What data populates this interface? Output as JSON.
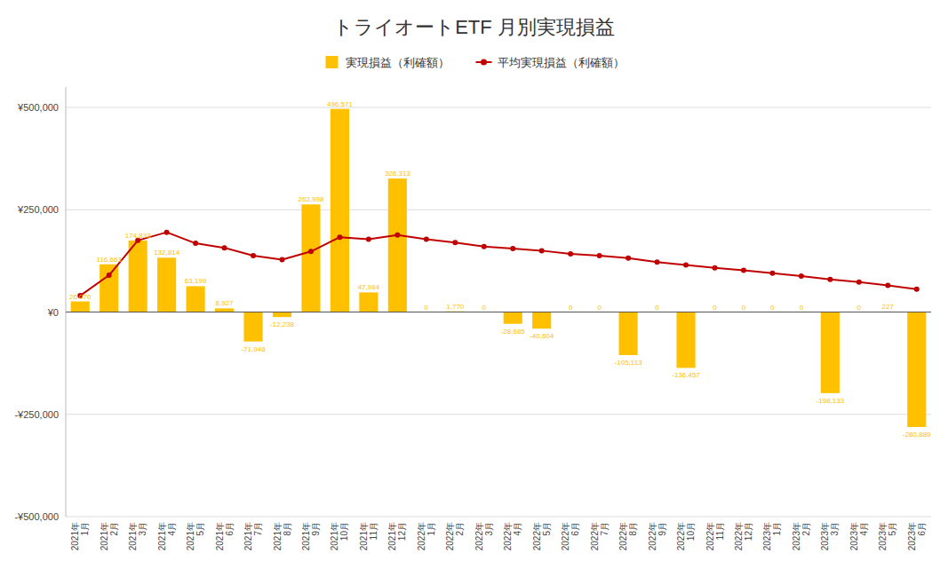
{
  "chart_data": {
    "type": "bar",
    "title": "トライオートETF 月別実現損益",
    "categories": [
      "2021年\n1月",
      "2021年\n2月",
      "2021年\n3月",
      "2021年\n4月",
      "2021年\n5月",
      "2021年\n6月",
      "2021年\n7月",
      "2021年\n8月",
      "2021年\n9月",
      "2021年\n10月",
      "2021年\n11月",
      "2021年\n12月",
      "2022年\n1月",
      "2022年\n2月",
      "2022年\n3月",
      "2022年\n4月",
      "2022年\n5月",
      "2022年\n6月",
      "2022年\n7月",
      "2022年\n8月",
      "2022年\n9月",
      "2022年\n10月",
      "2022年\n11月",
      "2022年\n12月",
      "2023年\n1月",
      "2023年\n2月",
      "2023年\n3月",
      "2023年\n4月",
      "2023年\n5月",
      "2023年\n6月"
    ],
    "series": [
      {
        "name": "実現損益（利確額）",
        "type": "bar",
        "color": "#FFC000",
        "values": [
          26070,
          116663,
          174833,
          132814,
          63199,
          8927,
          -71948,
          -12238,
          262998,
          496571,
          47984,
          326313,
          0,
          1770,
          0,
          -28685,
          -40604,
          0,
          0,
          -105113,
          0,
          -136457,
          0,
          0,
          0,
          0,
          -198133,
          0,
          227,
          -280889
        ],
        "value_labels": [
          "26,070",
          "116,663",
          "174,833",
          "132,814",
          "63,199",
          "8,927",
          "-71,948",
          "-12,238",
          "262,998",
          "496,571",
          "47,984",
          "326,313",
          "0",
          "1,770",
          "0",
          "-28,685",
          "-40,604",
          "0",
          "0",
          "-105,113",
          "0",
          "-136,457",
          "0",
          "0",
          "0",
          "0",
          "-198,133",
          "0",
          "227",
          "-280,889"
        ]
      },
      {
        "name": "平均実現損益（利確額）",
        "type": "line",
        "color": "#C00000",
        "marker": "circle",
        "values": [
          40000,
          90000,
          175000,
          195000,
          168000,
          157000,
          138000,
          128000,
          148000,
          183000,
          178000,
          188000,
          178000,
          170000,
          160000,
          155000,
          150000,
          142000,
          138000,
          132000,
          122000,
          115000,
          108000,
          102000,
          95000,
          88000,
          80000,
          73000,
          65000,
          56000
        ]
      }
    ],
    "ylim": [
      -500000,
      550000
    ],
    "yticks": [
      {
        "value": -500000,
        "label": "-¥500,000"
      },
      {
        "value": -250000,
        "label": "-¥250,000"
      },
      {
        "value": 0,
        "label": "¥0"
      },
      {
        "value": 250000,
        "label": "¥250,000"
      },
      {
        "value": 500000,
        "label": "¥500,000"
      }
    ],
    "grid": true,
    "legend": "top",
    "data_labels": true
  }
}
